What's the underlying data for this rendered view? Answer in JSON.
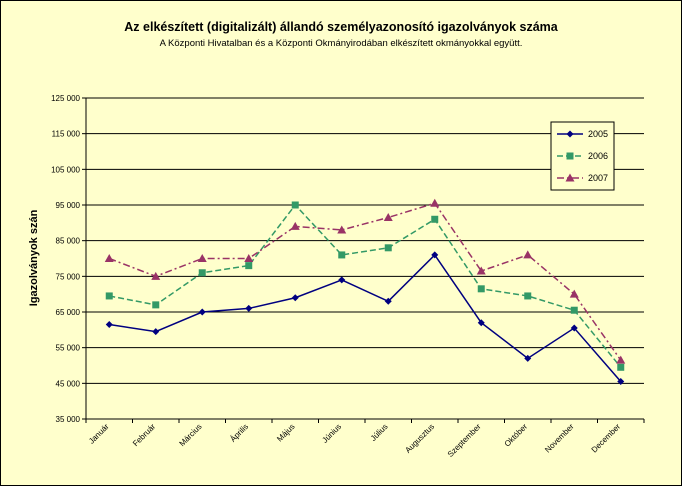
{
  "chart_data": {
    "type": "line",
    "title": "Az elkészített (digitalizált) állandó személyazonosító igazolványok száma",
    "subtitle": "A Központi Hivatalban és a Központi Okmányirodában elkészített okmányokkal együtt.",
    "ylabel": "Igazolványok szán",
    "xlabel": "",
    "categories": [
      "Január",
      "Február",
      "Március",
      "Április",
      "Május",
      "Június",
      "Július",
      "Augusztus",
      "Szeptember",
      "Október",
      "November",
      "December"
    ],
    "y_ticks": [
      "35 000",
      "45 000",
      "55 000",
      "65 000",
      "75 000",
      "85 000",
      "95 000",
      "105 000",
      "115 000",
      "125 000"
    ],
    "ylim": [
      35000,
      125000
    ],
    "grid": "horizontal",
    "legend_position": "top-right",
    "series": [
      {
        "name": "2005",
        "color": "#000080",
        "marker": "diamond",
        "dash": "solid",
        "values": [
          61500,
          59500,
          65000,
          66000,
          69000,
          74000,
          68000,
          81000,
          62000,
          52000,
          60500,
          45500
        ]
      },
      {
        "name": "2006",
        "color": "#339966",
        "marker": "square",
        "dash": "dashed",
        "values": [
          69500,
          67000,
          76000,
          78000,
          95000,
          81000,
          83000,
          91000,
          71500,
          69500,
          65500,
          49500
        ]
      },
      {
        "name": "2007",
        "color": "#993366",
        "marker": "triangle",
        "dash": "dashdot",
        "values": [
          80000,
          75000,
          80000,
          80000,
          89000,
          88000,
          91500,
          95500,
          76500,
          81000,
          70000,
          51500
        ]
      }
    ]
  }
}
